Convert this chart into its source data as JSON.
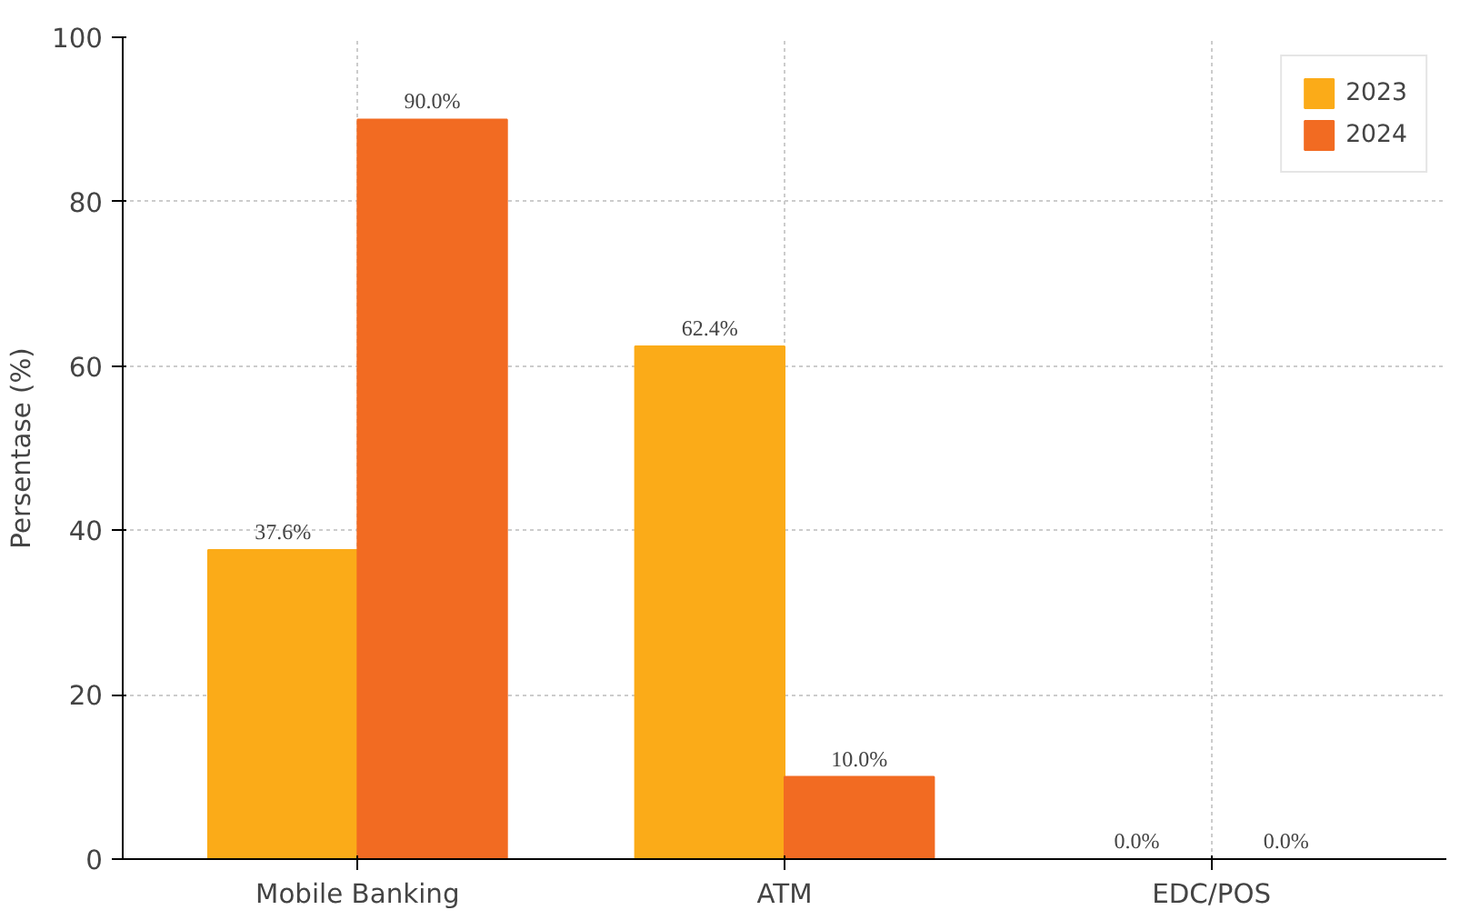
{
  "chart_data": {
    "type": "bar",
    "ylabel": "Persentase (%)",
    "categories": [
      "Mobile Banking",
      "ATM",
      "EDC/POS"
    ],
    "series": [
      {
        "name": "2023",
        "color": "#fbab18",
        "values": [
          37.6,
          62.4,
          0.0
        ],
        "value_labels": [
          "37.6%",
          "62.4%",
          "0.0%"
        ]
      },
      {
        "name": "2024",
        "color": "#f26b22",
        "values": [
          90.0,
          10.0,
          0.0
        ],
        "value_labels": [
          "90.0%",
          "10.0%",
          "0.0%"
        ]
      }
    ],
    "ylim": [
      0,
      100
    ],
    "yticks": [
      0,
      20,
      40,
      60,
      80,
      100
    ],
    "grid": true,
    "legend": "top right"
  }
}
